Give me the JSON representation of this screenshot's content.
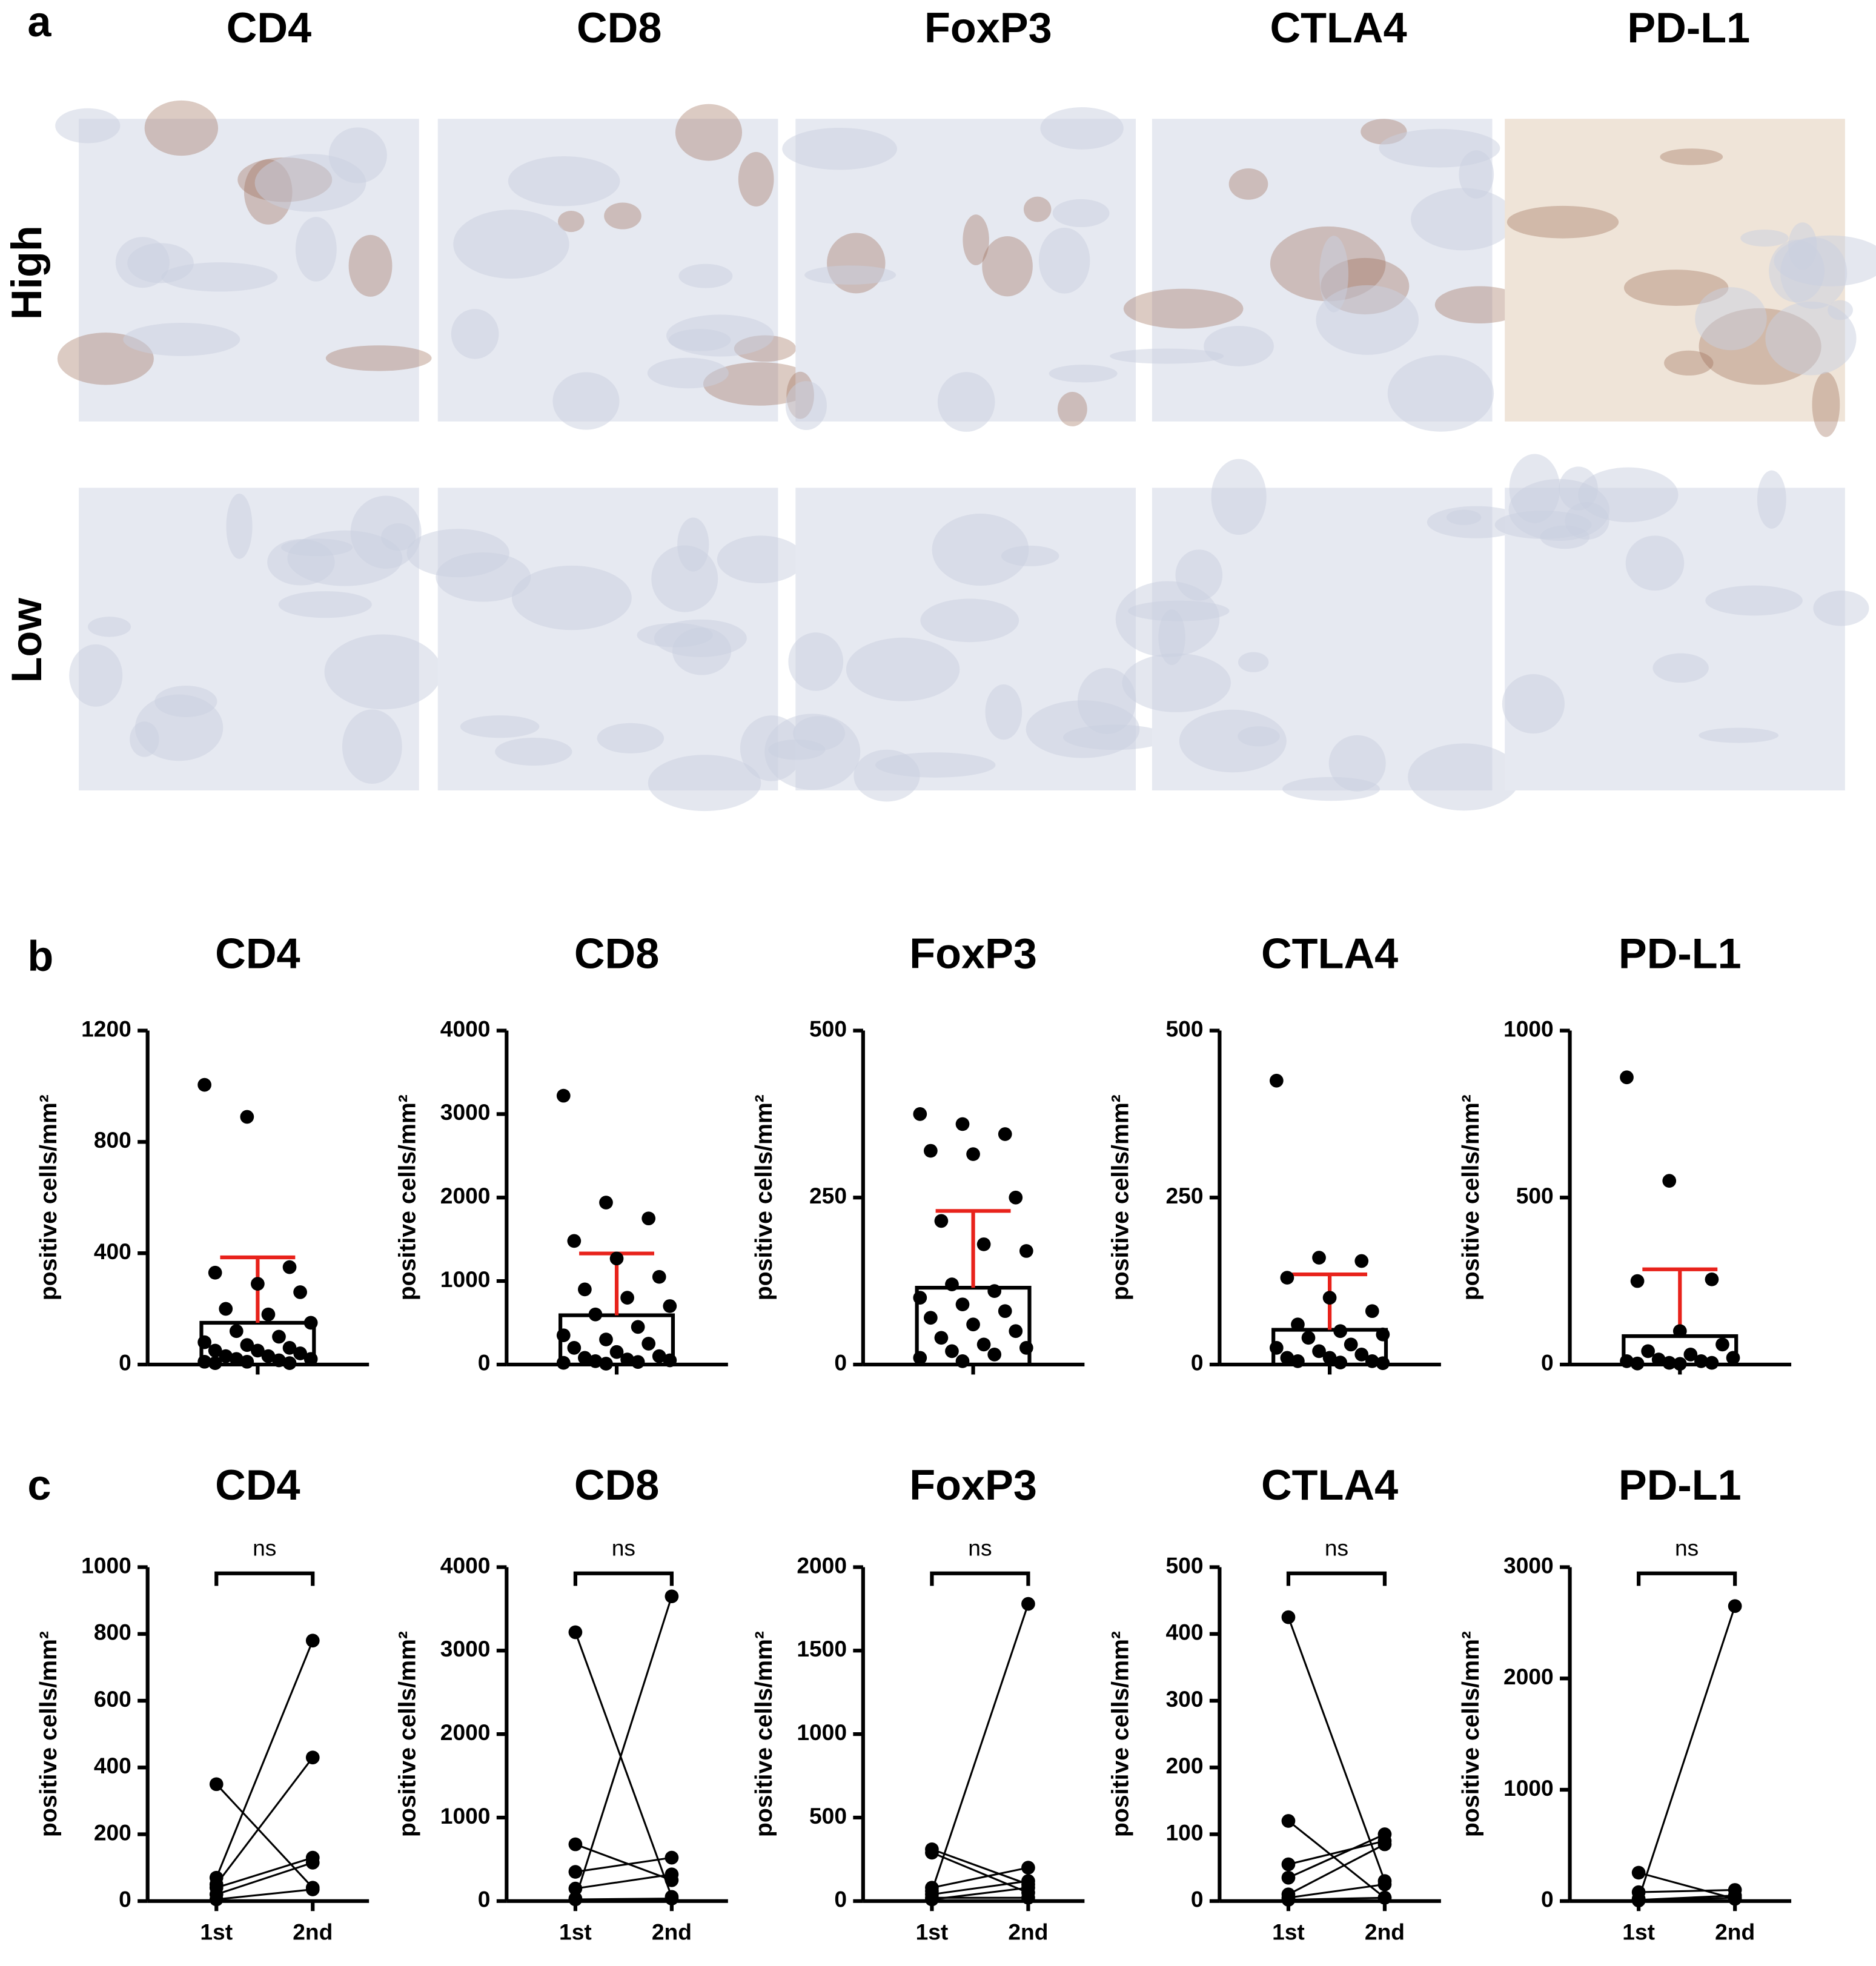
{
  "panel_labels": [
    "a",
    "b",
    "c"
  ],
  "panel_a": {
    "columns": [
      "CD4",
      "CD8",
      "FoxP3",
      "CTLA4",
      "PD-L1"
    ],
    "rows": [
      "High",
      "Low"
    ]
  },
  "chart_data": [
    {
      "type": "bar_scatter",
      "title": "CD4",
      "ylabel": "positive cells/mm²",
      "ylim": [
        0,
        1200
      ],
      "yticks": [
        0,
        400,
        800,
        1200
      ],
      "bar_color": "#ffffff",
      "error_color": "#e8221b",
      "point_color": "#000000",
      "mean": 150,
      "sd": 235,
      "points": [
        1005,
        890,
        350,
        330,
        290,
        260,
        200,
        180,
        150,
        120,
        100,
        80,
        70,
        60,
        50,
        50,
        40,
        30,
        30,
        20,
        20,
        15,
        10,
        10,
        5,
        5
      ]
    },
    {
      "type": "bar_scatter",
      "title": "CD8",
      "ylabel": "positive cells/mm²",
      "ylim": [
        0,
        4000
      ],
      "yticks": [
        0,
        1000,
        2000,
        3000,
        4000
      ],
      "bar_color": "#ffffff",
      "error_color": "#e8221b",
      "point_color": "#000000",
      "mean": 590,
      "sd": 740,
      "points": [
        3220,
        1940,
        1750,
        1480,
        1270,
        1050,
        900,
        800,
        700,
        600,
        450,
        350,
        300,
        250,
        200,
        150,
        100,
        80,
        60,
        50,
        40,
        30,
        20,
        10
      ]
    },
    {
      "type": "bar_scatter",
      "title": "FoxP3",
      "ylabel": "positive cells/mm²",
      "ylim": [
        0,
        500
      ],
      "yticks": [
        0,
        250,
        500
      ],
      "bar_color": "#ffffff",
      "error_color": "#e8221b",
      "point_color": "#000000",
      "mean": 115,
      "sd": 115,
      "points": [
        375,
        360,
        345,
        320,
        315,
        250,
        215,
        180,
        170,
        120,
        110,
        100,
        90,
        80,
        70,
        60,
        50,
        40,
        30,
        25,
        20,
        15,
        10,
        5
      ]
    },
    {
      "type": "bar_scatter",
      "title": "CTLA4",
      "ylabel": "positive cells/mm²",
      "ylim": [
        0,
        500
      ],
      "yticks": [
        0,
        250,
        500
      ],
      "bar_color": "#ffffff",
      "error_color": "#e8221b",
      "point_color": "#000000",
      "mean": 52,
      "sd": 83,
      "points": [
        425,
        160,
        155,
        130,
        100,
        80,
        60,
        50,
        45,
        40,
        30,
        25,
        20,
        15,
        10,
        10,
        5,
        5,
        3,
        2
      ]
    },
    {
      "type": "bar_scatter",
      "title": "PD-L1",
      "ylabel": "positive cells/mm²",
      "ylim": [
        0,
        1000
      ],
      "yticks": [
        0,
        500,
        1000
      ],
      "bar_color": "#ffffff",
      "error_color": "#e8221b",
      "point_color": "#000000",
      "mean": 85,
      "sd": 200,
      "points": [
        860,
        550,
        255,
        250,
        100,
        60,
        40,
        30,
        20,
        15,
        10,
        10,
        5,
        5,
        3,
        2
      ]
    },
    {
      "type": "paired",
      "title": "CD4",
      "ylabel": "positive cells/mm²",
      "annotation": "ns",
      "categories": [
        "1st",
        "2nd"
      ],
      "ylim": [
        0,
        1000
      ],
      "yticks": [
        0,
        200,
        400,
        600,
        800,
        1000
      ],
      "color": "#000000",
      "series": [
        {
          "values": [
            350,
            40
          ]
        },
        {
          "values": [
            70,
            780
          ]
        },
        {
          "values": [
            50,
            430
          ]
        },
        {
          "values": [
            40,
            130
          ]
        },
        {
          "values": [
            20,
            115
          ]
        },
        {
          "values": [
            5,
            35
          ]
        }
      ]
    },
    {
      "type": "paired",
      "title": "CD8",
      "ylabel": "positive cells/mm²",
      "annotation": "ns",
      "categories": [
        "1st",
        "2nd"
      ],
      "ylim": [
        0,
        4000
      ],
      "yticks": [
        0,
        1000,
        2000,
        3000,
        4000
      ],
      "color": "#000000",
      "series": [
        {
          "values": [
            3220,
            50
          ]
        },
        {
          "values": [
            30,
            3650
          ]
        },
        {
          "values": [
            680,
            250
          ]
        },
        {
          "values": [
            350,
            520
          ]
        },
        {
          "values": [
            150,
            320
          ]
        },
        {
          "values": [
            20,
            30
          ]
        }
      ]
    },
    {
      "type": "paired",
      "title": "FoxP3",
      "ylabel": "positive cells/mm²",
      "annotation": "ns",
      "categories": [
        "1st",
        "2nd"
      ],
      "ylim": [
        0,
        2000
      ],
      "yticks": [
        0,
        500,
        1000,
        1500,
        2000
      ],
      "color": "#000000",
      "series": [
        {
          "values": [
            310,
            100
          ]
        },
        {
          "values": [
            290,
            50
          ]
        },
        {
          "values": [
            60,
            1780
          ]
        },
        {
          "values": [
            80,
            200
          ]
        },
        {
          "values": [
            40,
            120
          ]
        },
        {
          "values": [
            20,
            20
          ]
        },
        {
          "values": [
            10,
            80
          ]
        }
      ]
    },
    {
      "type": "paired",
      "title": "CTLA4",
      "ylabel": "positive cells/mm²",
      "annotation": "ns",
      "categories": [
        "1st",
        "2nd"
      ],
      "ylim": [
        0,
        500
      ],
      "yticks": [
        0,
        100,
        200,
        300,
        400,
        500
      ],
      "color": "#000000",
      "series": [
        {
          "values": [
            425,
            30
          ]
        },
        {
          "values": [
            120,
            5
          ]
        },
        {
          "values": [
            55,
            90
          ]
        },
        {
          "values": [
            35,
            100
          ]
        },
        {
          "values": [
            10,
            85
          ]
        },
        {
          "values": [
            5,
            25
          ]
        },
        {
          "values": [
            2,
            5
          ]
        }
      ]
    },
    {
      "type": "paired",
      "title": "PD-L1",
      "ylabel": "positive cells/mm²",
      "annotation": "ns",
      "categories": [
        "1st",
        "2nd"
      ],
      "ylim": [
        0,
        3000
      ],
      "yticks": [
        0,
        1000,
        2000,
        3000
      ],
      "color": "#000000",
      "series": [
        {
          "values": [
            255,
            20
          ]
        },
        {
          "values": [
            20,
            2650
          ]
        },
        {
          "values": [
            80,
            100
          ]
        },
        {
          "values": [
            10,
            50
          ]
        },
        {
          "values": [
            5,
            30
          ]
        }
      ]
    }
  ]
}
